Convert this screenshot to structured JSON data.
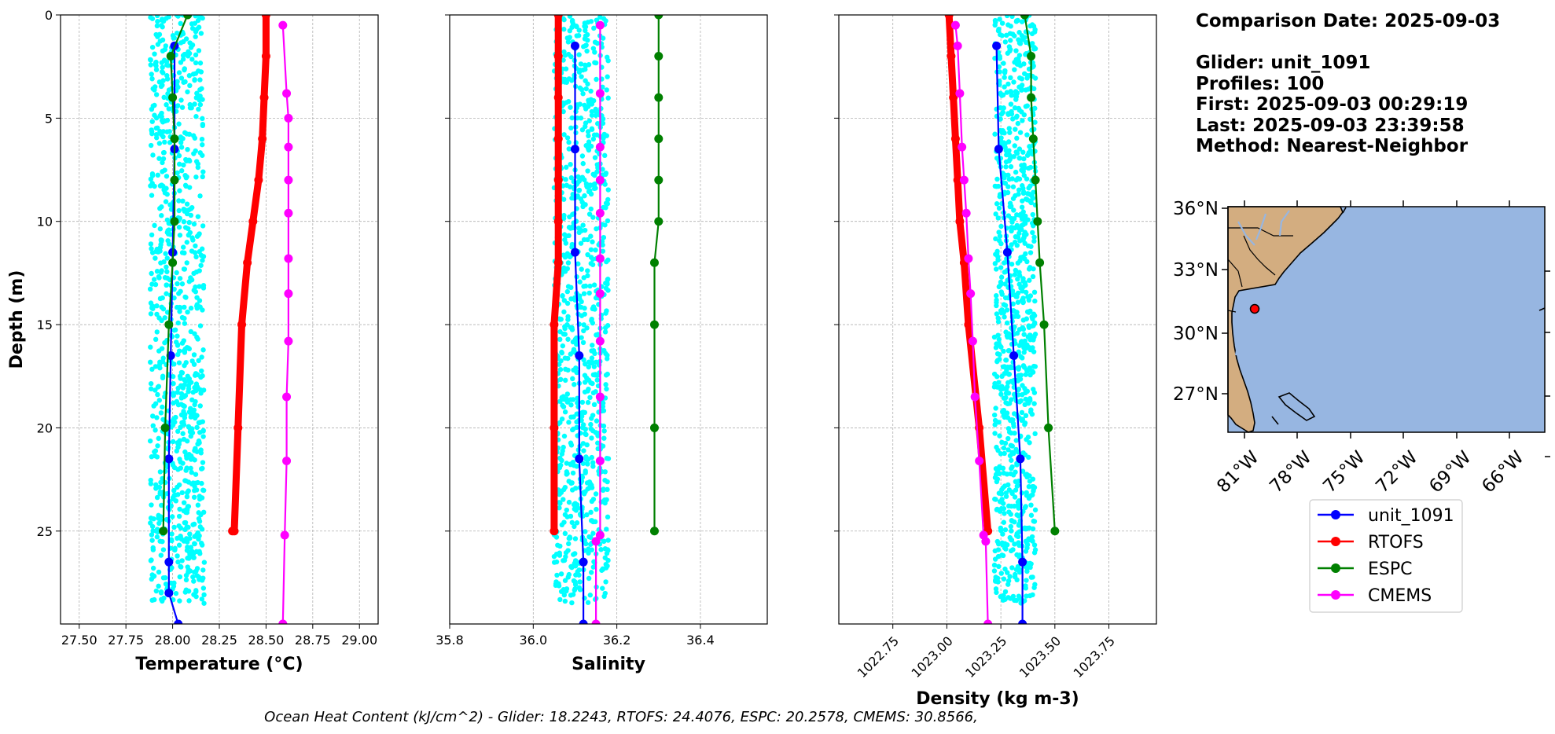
{
  "info": {
    "comparison_date": "Comparison Date: 2025-09-03",
    "glider": "Glider: unit_1091",
    "profiles": "Profiles: 100",
    "first": "First: 2025-09-03 00:29:19",
    "last": "Last: 2025-09-03 23:39:58",
    "method": "Method: Nearest-Neighbor"
  },
  "footer": "Ocean Heat Content (kJ/cm^2) - Glider: 18.2243,  RTOFS: 24.4076,  ESPC: 20.2578,  CMEMS: 30.8566,",
  "colors": {
    "glider_scatter": "#00ffff",
    "unit_1091": "#0000ff",
    "RTOFS": "#ff0000",
    "ESPC": "#008000",
    "CMEMS": "#ff00ff",
    "ocean": "#97b6e1",
    "land": "#d3ad80",
    "grid": "#b0b0b0"
  },
  "legend": [
    "unit_1091",
    "RTOFS",
    "ESPC",
    "CMEMS"
  ],
  "chart_data": [
    {
      "type": "line",
      "xlabel": "Temperature (°C)",
      "ylabel": "Depth (m)",
      "xlim": [
        27.4,
        29.1
      ],
      "ylim": [
        29.5,
        0
      ],
      "xticks": [
        "27.50",
        "27.75",
        "28.00",
        "28.25",
        "28.50",
        "28.75",
        "29.00"
      ],
      "yticks": [
        "0",
        "5",
        "10",
        "15",
        "20",
        "25"
      ],
      "grid": true,
      "scatter": {
        "name": "glider profiles",
        "x_range": [
          27.88,
          28.17
        ],
        "y_range": [
          0,
          28.5
        ]
      },
      "series": [
        {
          "name": "unit_1091",
          "x": [
            28.01,
            28.01,
            28.0,
            27.99,
            27.98,
            27.98,
            27.98,
            28.03
          ],
          "y": [
            1.5,
            6.5,
            11.5,
            16.5,
            21.5,
            26.5,
            28.0,
            29.5
          ]
        },
        {
          "name": "RTOFS",
          "x": [
            28.5,
            28.5,
            28.49,
            28.48,
            28.46,
            28.43,
            28.4,
            28.37,
            28.35,
            28.33,
            28.32
          ],
          "y": [
            0,
            2,
            4,
            6,
            8,
            10,
            12,
            15,
            20,
            25,
            25
          ]
        },
        {
          "name": "ESPC",
          "x": [
            28.08,
            27.99,
            28.0,
            28.01,
            28.01,
            28.01,
            28.0,
            27.98,
            27.96,
            27.95
          ],
          "y": [
            0,
            2,
            4,
            6,
            8,
            10,
            12,
            15,
            20,
            25
          ]
        },
        {
          "name": "CMEMS",
          "x": [
            28.59,
            28.61,
            28.62,
            28.62,
            28.62,
            28.62,
            28.62,
            28.62,
            28.62,
            28.61,
            28.61,
            28.6,
            28.59,
            28.59
          ],
          "y": [
            0.5,
            3.8,
            5.0,
            6.4,
            8.0,
            9.6,
            11.8,
            13.5,
            15.8,
            18.5,
            21.6,
            25.2,
            29.5,
            29.5
          ]
        }
      ]
    },
    {
      "type": "line",
      "xlabel": "Salinity",
      "xlim": [
        35.8,
        36.56
      ],
      "ylim": [
        29.5,
        0
      ],
      "xticks": [
        "35.8",
        "36.0",
        "36.2",
        "36.4"
      ],
      "grid": true,
      "scatter": {
        "name": "glider profiles",
        "x_range": [
          36.05,
          36.18
        ],
        "y_range": [
          0,
          28.5
        ]
      },
      "series": [
        {
          "name": "unit_1091",
          "x": [
            36.1,
            36.1,
            36.1,
            36.11,
            36.11,
            36.12,
            36.12
          ],
          "y": [
            1.5,
            6.5,
            11.5,
            16.5,
            21.5,
            26.5,
            29.5
          ]
        },
        {
          "name": "RTOFS",
          "x": [
            36.06,
            36.06,
            36.06,
            36.06,
            36.06,
            36.06,
            36.06,
            36.05,
            36.05,
            36.05
          ],
          "y": [
            0,
            2,
            4,
            6,
            8,
            10,
            12,
            15,
            20,
            25
          ]
        },
        {
          "name": "ESPC",
          "x": [
            36.3,
            36.3,
            36.3,
            36.3,
            36.3,
            36.3,
            36.29,
            36.29,
            36.29,
            36.29
          ],
          "y": [
            0,
            2,
            4,
            6,
            8,
            10,
            12,
            15,
            20,
            25
          ]
        },
        {
          "name": "CMEMS",
          "x": [
            36.16,
            36.16,
            36.16,
            36.16,
            36.16,
            36.16,
            36.16,
            36.16,
            36.16,
            36.16,
            36.16,
            36.15,
            36.15
          ],
          "y": [
            0.5,
            3.8,
            6.4,
            8.0,
            9.6,
            11.8,
            13.5,
            15.8,
            18.5,
            21.6,
            25.2,
            25.5,
            29.5
          ]
        }
      ]
    },
    {
      "type": "line",
      "xlabel": "Density (kg m-3)",
      "xlim": [
        1022.5,
        1023.97
      ],
      "ylim": [
        29.5,
        0
      ],
      "xticks": [
        "1022.75",
        "1023.00",
        "1023.25",
        "1023.50",
        "1023.75"
      ],
      "grid": true,
      "scatter": {
        "name": "glider profiles",
        "x_range": [
          1023.22,
          1023.41
        ],
        "y_range": [
          0,
          28.5
        ]
      },
      "series": [
        {
          "name": "unit_1091",
          "x": [
            1023.23,
            1023.24,
            1023.28,
            1023.31,
            1023.34,
            1023.35,
            1023.35
          ],
          "y": [
            1.5,
            6.5,
            11.5,
            16.5,
            21.5,
            26.5,
            29.5
          ]
        },
        {
          "name": "RTOFS",
          "x": [
            1023.01,
            1023.02,
            1023.03,
            1023.04,
            1023.05,
            1023.06,
            1023.08,
            1023.1,
            1023.15,
            1023.19
          ],
          "y": [
            0,
            2,
            4,
            6,
            8,
            10,
            12,
            15,
            20,
            25
          ]
        },
        {
          "name": "ESPC",
          "x": [
            1023.36,
            1023.39,
            1023.39,
            1023.4,
            1023.41,
            1023.42,
            1023.43,
            1023.45,
            1023.47,
            1023.5
          ],
          "y": [
            0,
            2,
            4,
            6,
            8,
            10,
            12,
            15,
            20,
            25
          ]
        },
        {
          "name": "CMEMS",
          "x": [
            1023.04,
            1023.05,
            1023.06,
            1023.07,
            1023.08,
            1023.09,
            1023.1,
            1023.11,
            1023.12,
            1023.13,
            1023.15,
            1023.17,
            1023.18,
            1023.19
          ],
          "y": [
            0.5,
            1.5,
            3.8,
            6.4,
            8.0,
            9.6,
            11.8,
            13.5,
            15.8,
            18.5,
            21.6,
            25.2,
            25.5,
            29.5
          ]
        }
      ]
    }
  ],
  "map": {
    "lat_labels": [
      "36°N",
      "33°N",
      "30°N",
      "27°N"
    ],
    "lon_labels": [
      "81°W",
      "78°W",
      "75°W",
      "72°W",
      "69°W",
      "66°W"
    ],
    "glider_marker": "glider-location"
  }
}
